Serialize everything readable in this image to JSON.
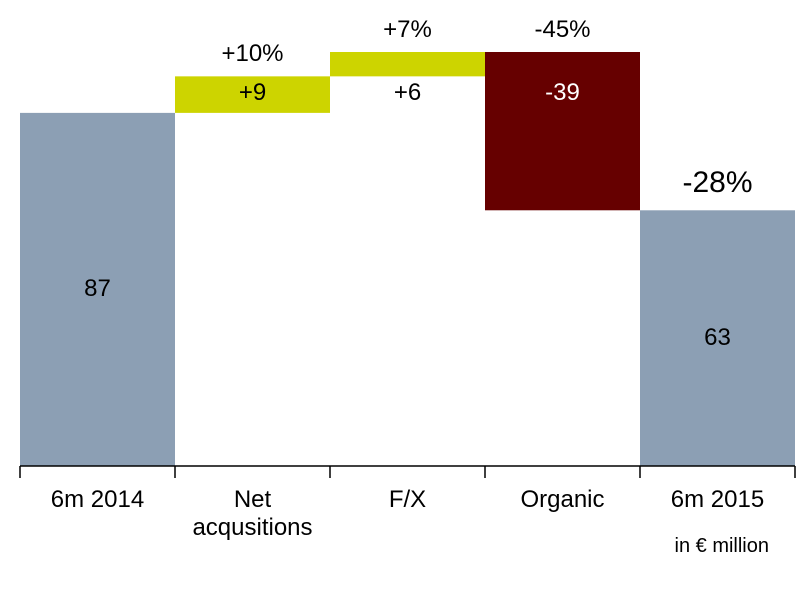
{
  "chart_data": {
    "type": "waterfall",
    "categories": [
      "6m 2014",
      "Net acqusitions",
      "F/X",
      "Organic",
      "6m 2015"
    ],
    "values": [
      87,
      9,
      6,
      -39,
      63
    ],
    "value_labels": [
      "87",
      "+9",
      "+6",
      "-39",
      "63"
    ],
    "kinds": [
      "total",
      "delta",
      "delta",
      "delta",
      "total"
    ],
    "change_labels": [
      null,
      "+10%",
      "+7%",
      "-45%",
      "-28%"
    ],
    "note": "in € million",
    "colors": {
      "total": "#8c9fb4",
      "increase": "#cdd400",
      "decrease": "#660000"
    }
  }
}
